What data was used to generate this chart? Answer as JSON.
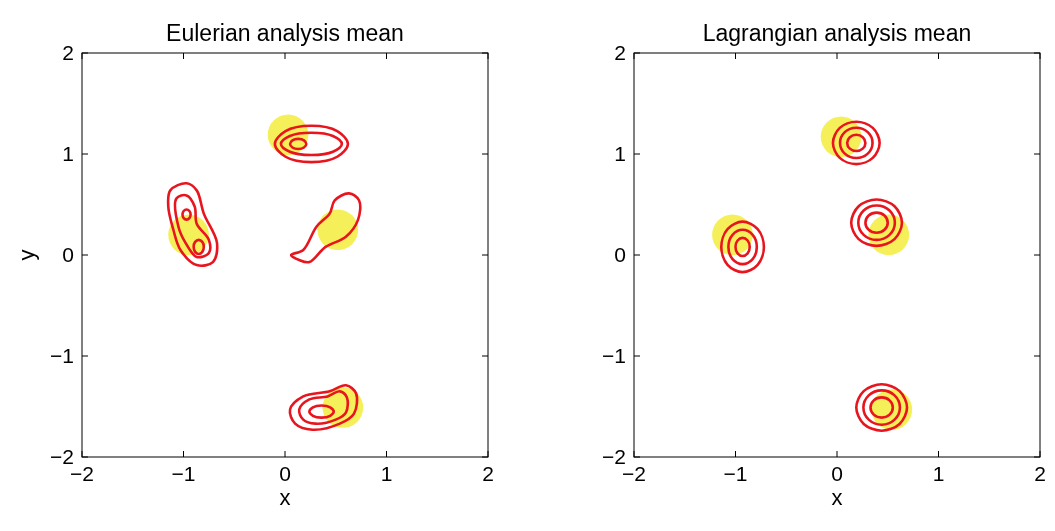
{
  "chart_data": [
    {
      "type": "scatter",
      "title": "Eulerian analysis mean",
      "xlabel": "x",
      "ylabel": "y",
      "xlim": [
        -2,
        2
      ],
      "ylim": [
        -2,
        2
      ],
      "xticks": [
        -2,
        -1,
        0,
        1,
        2
      ],
      "yticks": [
        -2,
        -1,
        0,
        1,
        2
      ],
      "grid": false,
      "series": [
        {
          "type": "scatter",
          "marker": "circle",
          "color": "#f5f05a",
          "x": [
            0.03,
            -0.95,
            0.52,
            0.57
          ],
          "values": [
            1.19,
            0.2,
            0.25,
            -1.51
          ]
        }
      ]
    },
    {
      "type": "scatter",
      "title": "Lagrangian analysis mean",
      "xlabel": "x",
      "xlim": [
        -2,
        2
      ],
      "ylim": [
        -2,
        2
      ],
      "xticks": [
        -2,
        -1,
        0,
        1,
        2
      ],
      "yticks": [
        -2,
        -1,
        0,
        1,
        2
      ],
      "grid": false,
      "series": [
        {
          "type": "scatter",
          "marker": "circle",
          "color": "#f5f05a",
          "x": [
            0.04,
            -1.03,
            0.51,
            0.54
          ],
          "values": [
            1.17,
            0.2,
            0.2,
            -1.53
          ]
        }
      ]
    }
  ]
}
